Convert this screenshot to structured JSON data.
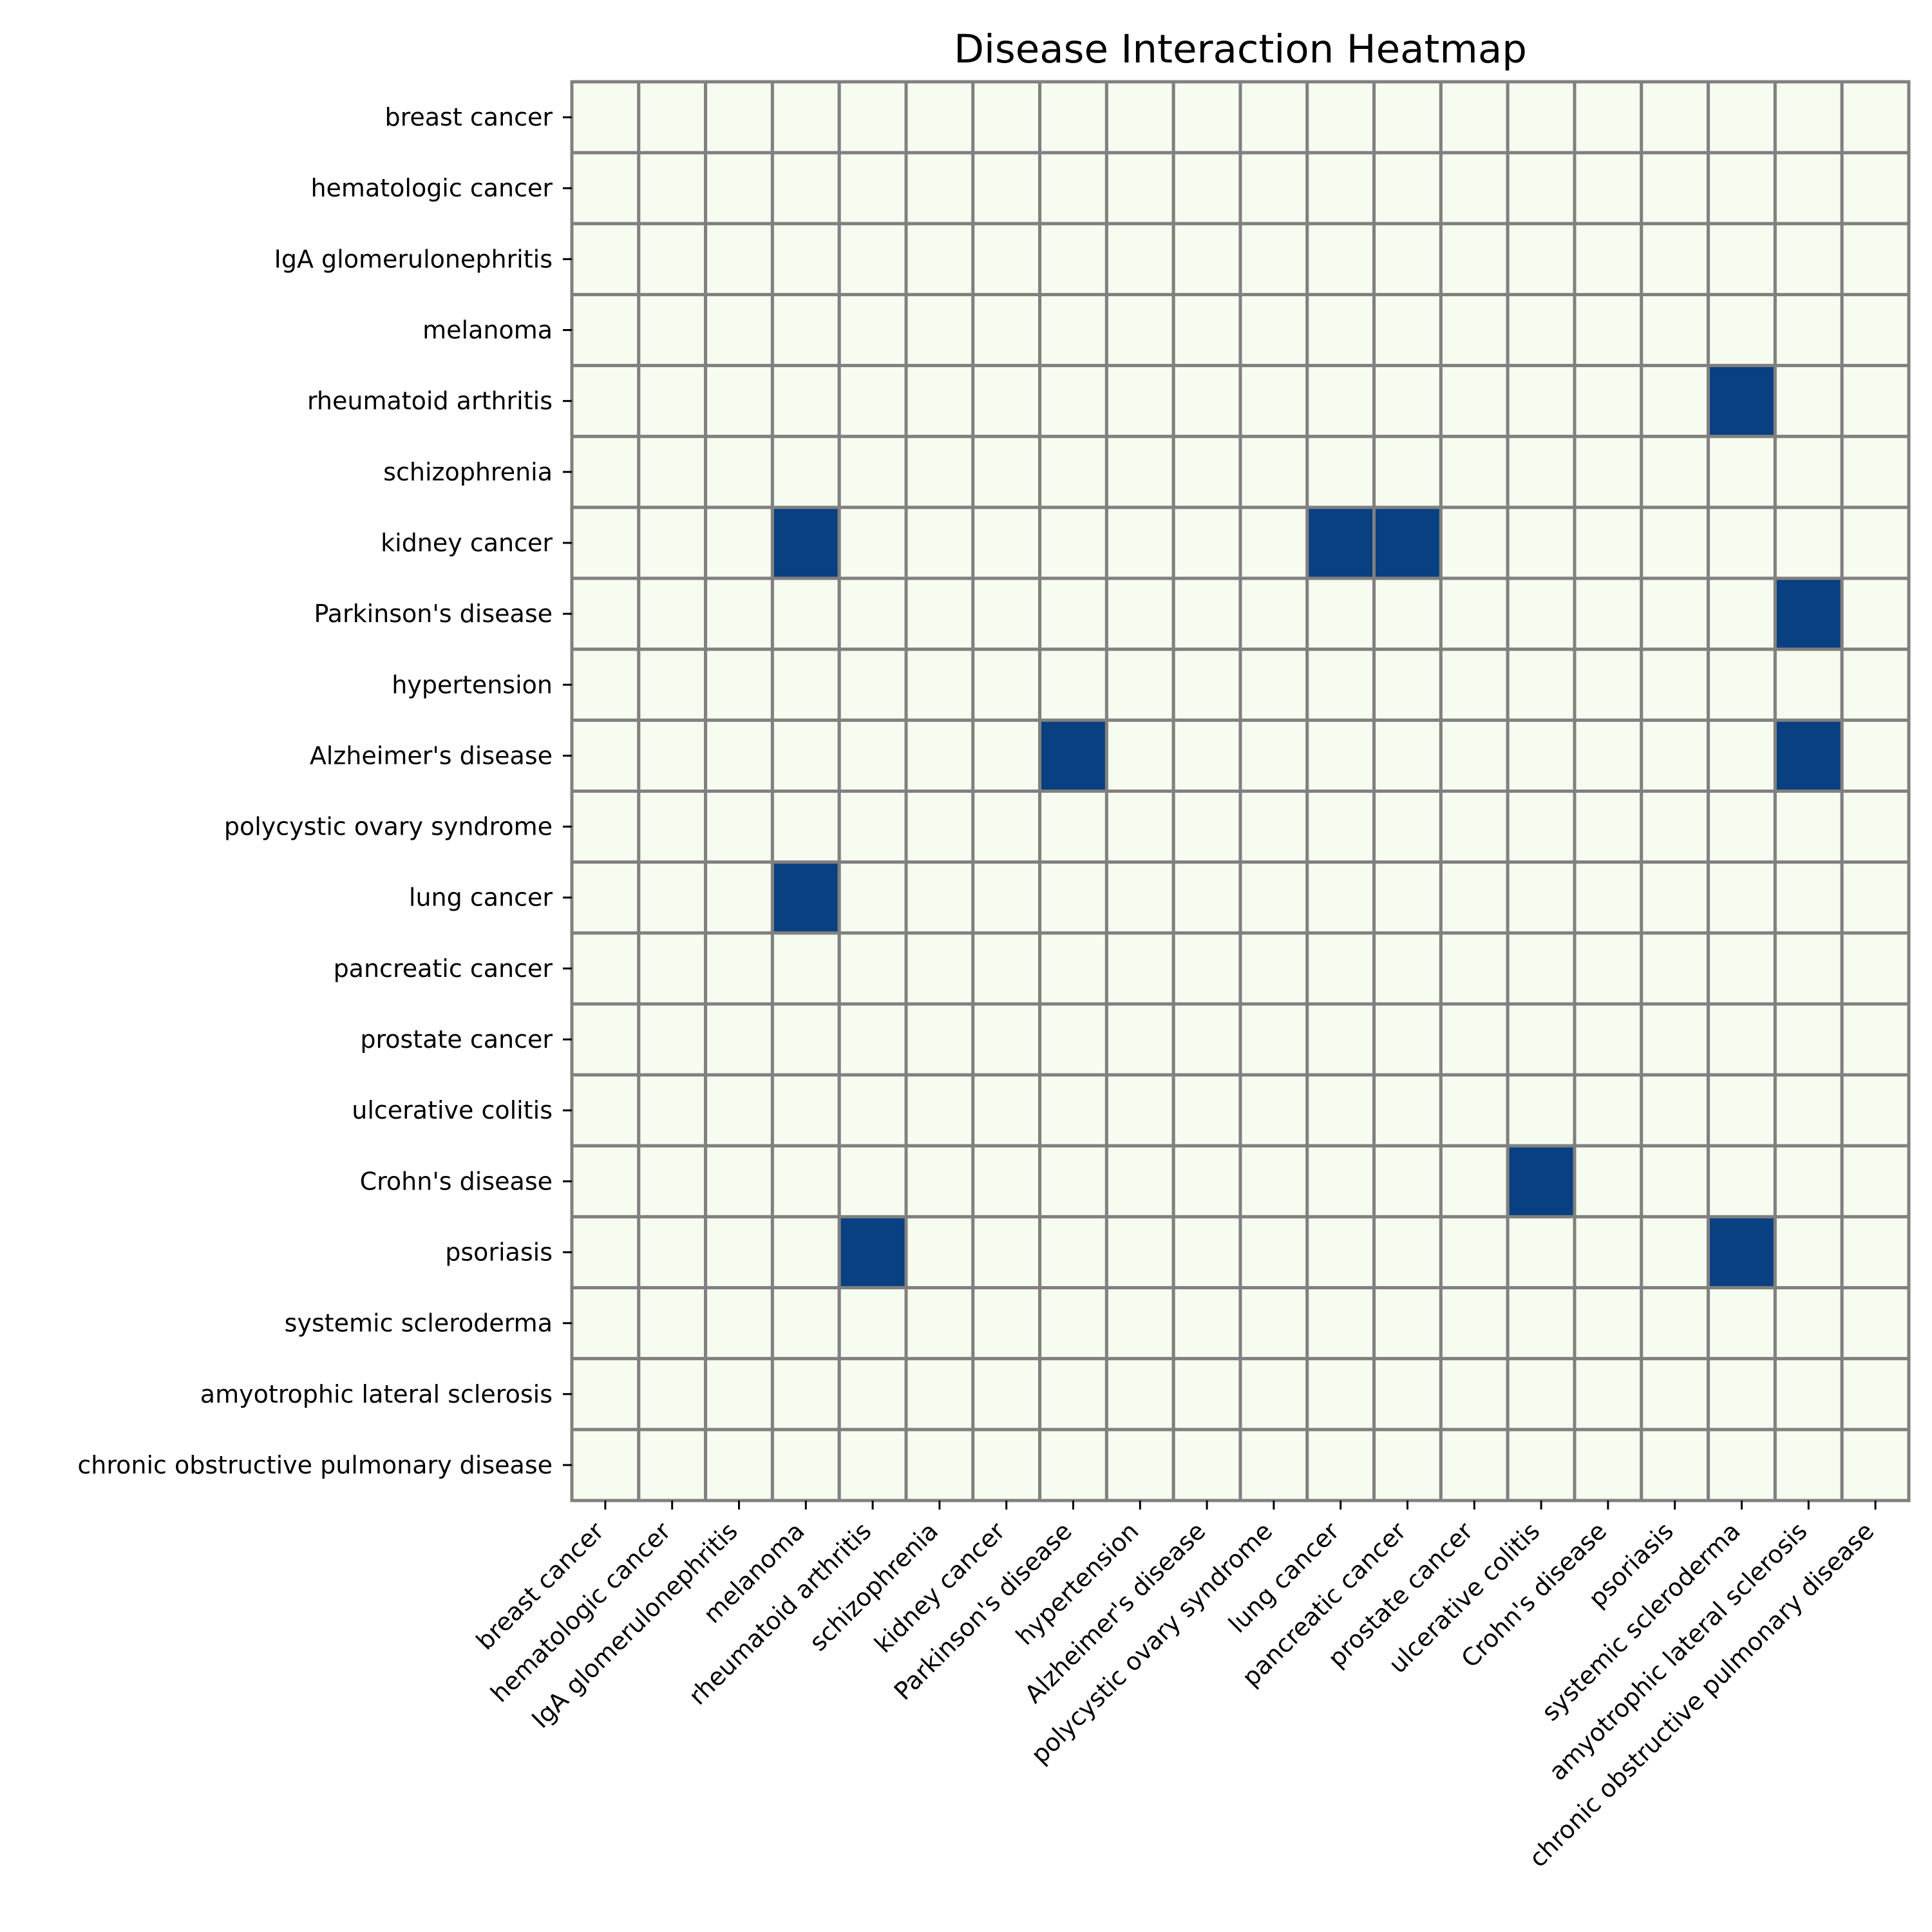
{
  "chart_data": {
    "type": "heatmap",
    "title": "Disease Interaction Heatmap",
    "xlabel": "",
    "ylabel": "",
    "x_categories": [
      "breast cancer",
      "hematologic cancer",
      "IgA glomerulonephritis",
      "melanoma",
      "rheumatoid arthritis",
      "schizophrenia",
      "kidney cancer",
      "Parkinson's disease",
      "hypertension",
      "Alzheimer's disease",
      "polycystic ovary syndrome",
      "lung cancer",
      "pancreatic cancer",
      "prostate cancer",
      "ulcerative colitis",
      "Crohn's disease",
      "psoriasis",
      "systemic scleroderma",
      "amyotrophic lateral sclerosis",
      "chronic obstructive pulmonary disease"
    ],
    "y_categories": [
      "breast cancer",
      "hematologic cancer",
      "IgA glomerulonephritis",
      "melanoma",
      "rheumatoid arthritis",
      "schizophrenia",
      "kidney cancer",
      "Parkinson's disease",
      "hypertension",
      "Alzheimer's disease",
      "polycystic ovary syndrome",
      "lung cancer",
      "pancreatic cancer",
      "prostate cancer",
      "ulcerative colitis",
      "Crohn's disease",
      "psoriasis",
      "systemic scleroderma",
      "amyotrophic lateral sclerosis",
      "chronic obstructive pulmonary disease"
    ],
    "values": [
      [
        0,
        0,
        0,
        0,
        0,
        0,
        0,
        0,
        0,
        0,
        0,
        0,
        0,
        0,
        0,
        0,
        0,
        0,
        0,
        0
      ],
      [
        0,
        0,
        0,
        0,
        0,
        0,
        0,
        0,
        0,
        0,
        0,
        0,
        0,
        0,
        0,
        0,
        0,
        0,
        0,
        0
      ],
      [
        0,
        0,
        0,
        0,
        0,
        0,
        0,
        0,
        0,
        0,
        0,
        0,
        0,
        0,
        0,
        0,
        0,
        0,
        0,
        0
      ],
      [
        0,
        0,
        0,
        0,
        0,
        0,
        0,
        0,
        0,
        0,
        0,
        0,
        0,
        0,
        0,
        0,
        0,
        0,
        0,
        0
      ],
      [
        0,
        0,
        0,
        0,
        0,
        0,
        0,
        0,
        0,
        0,
        0,
        0,
        0,
        0,
        0,
        0,
        0,
        1,
        0,
        0
      ],
      [
        0,
        0,
        0,
        0,
        0,
        0,
        0,
        0,
        0,
        0,
        0,
        0,
        0,
        0,
        0,
        0,
        0,
        0,
        0,
        0
      ],
      [
        0,
        0,
        0,
        1,
        0,
        0,
        0,
        0,
        0,
        0,
        0,
        1,
        1,
        0,
        0,
        0,
        0,
        0,
        0,
        0
      ],
      [
        0,
        0,
        0,
        0,
        0,
        0,
        0,
        0,
        0,
        0,
        0,
        0,
        0,
        0,
        0,
        0,
        0,
        0,
        1,
        0
      ],
      [
        0,
        0,
        0,
        0,
        0,
        0,
        0,
        0,
        0,
        0,
        0,
        0,
        0,
        0,
        0,
        0,
        0,
        0,
        0,
        0
      ],
      [
        0,
        0,
        0,
        0,
        0,
        0,
        0,
        1,
        0,
        0,
        0,
        0,
        0,
        0,
        0,
        0,
        0,
        0,
        1,
        0
      ],
      [
        0,
        0,
        0,
        0,
        0,
        0,
        0,
        0,
        0,
        0,
        0,
        0,
        0,
        0,
        0,
        0,
        0,
        0,
        0,
        0
      ],
      [
        0,
        0,
        0,
        1,
        0,
        0,
        0,
        0,
        0,
        0,
        0,
        0,
        0,
        0,
        0,
        0,
        0,
        0,
        0,
        0
      ],
      [
        0,
        0,
        0,
        0,
        0,
        0,
        0,
        0,
        0,
        0,
        0,
        0,
        0,
        0,
        0,
        0,
        0,
        0,
        0,
        0
      ],
      [
        0,
        0,
        0,
        0,
        0,
        0,
        0,
        0,
        0,
        0,
        0,
        0,
        0,
        0,
        0,
        0,
        0,
        0,
        0,
        0
      ],
      [
        0,
        0,
        0,
        0,
        0,
        0,
        0,
        0,
        0,
        0,
        0,
        0,
        0,
        0,
        0,
        0,
        0,
        0,
        0,
        0
      ],
      [
        0,
        0,
        0,
        0,
        0,
        0,
        0,
        0,
        0,
        0,
        0,
        0,
        0,
        0,
        1,
        0,
        0,
        0,
        0,
        0
      ],
      [
        0,
        0,
        0,
        0,
        1,
        0,
        0,
        0,
        0,
        0,
        0,
        0,
        0,
        0,
        0,
        0,
        0,
        1,
        0,
        0
      ],
      [
        0,
        0,
        0,
        0,
        0,
        0,
        0,
        0,
        0,
        0,
        0,
        0,
        0,
        0,
        0,
        0,
        0,
        0,
        0,
        0
      ],
      [
        0,
        0,
        0,
        0,
        0,
        0,
        0,
        0,
        0,
        0,
        0,
        0,
        0,
        0,
        0,
        0,
        0,
        0,
        0,
        0
      ],
      [
        0,
        0,
        0,
        0,
        0,
        0,
        0,
        0,
        0,
        0,
        0,
        0,
        0,
        0,
        0,
        0,
        0,
        0,
        0,
        0
      ]
    ],
    "colors": {
      "low": "#f7fcf0",
      "high": "#084081",
      "cell_border": "#808080"
    },
    "grid": true,
    "legend": "none"
  }
}
